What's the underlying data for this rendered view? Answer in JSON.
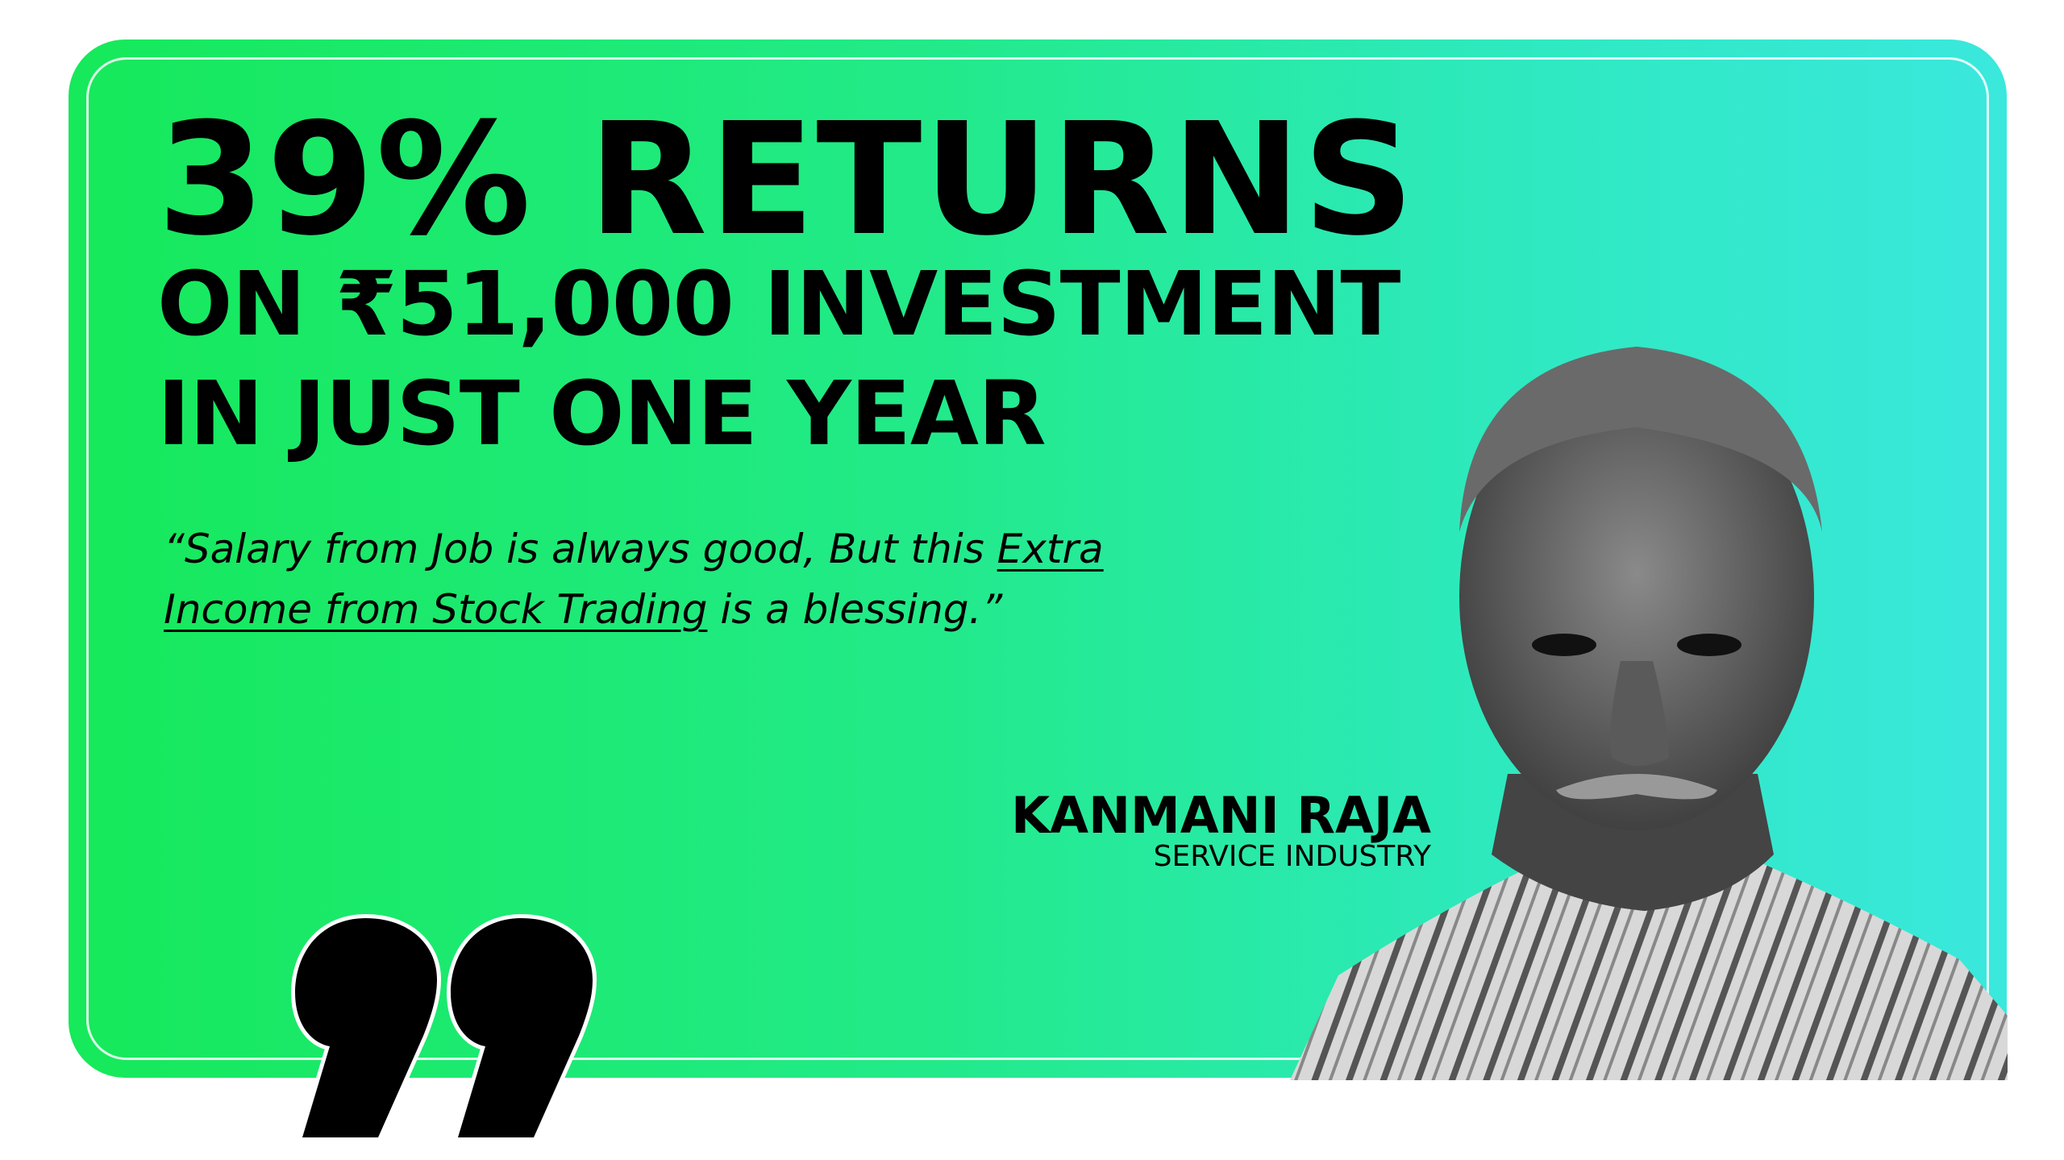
{
  "headline": {
    "line1": "39% RETURNS",
    "line2": "ON ₹51,000 INVESTMENT",
    "line3": "IN JUST ONE YEAR"
  },
  "testimonial": {
    "part1": "“Salary from Job is always good, But this ",
    "highlight": "Extra Income from Stock Trading",
    "part2": " is a blessing.”"
  },
  "person": {
    "name": "KANMANI RAJA",
    "role": "SERVICE INDUSTRY"
  },
  "colors": {
    "gradient_start": "#16e95a",
    "gradient_end": "#3ae8dd",
    "text": "#000000"
  },
  "icons": {
    "quote": "closing-quote-icon"
  }
}
